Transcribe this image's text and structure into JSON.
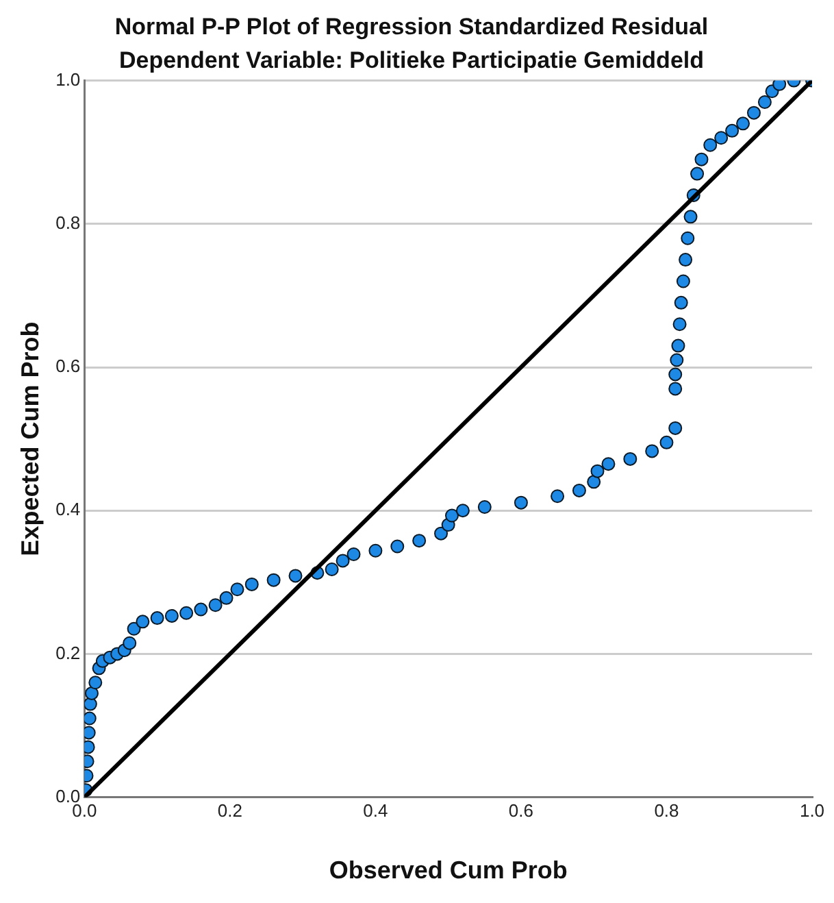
{
  "chart_data": {
    "type": "scatter",
    "title": "Normal P-P Plot of Regression Standardized Residual",
    "subtitle": "Dependent Variable: Politieke Participatie Gemiddeld",
    "xlabel": "Observed Cum Prob",
    "ylabel": "Expected Cum Prob",
    "xlim": [
      0,
      1
    ],
    "ylim": [
      0,
      1
    ],
    "xticks": [
      {
        "value": 0,
        "label": "0.0"
      },
      0.2,
      0.4,
      0.6,
      0.8,
      {
        "value": 1,
        "label": "1.0"
      }
    ],
    "yticks": [
      {
        "value": 0,
        "label": "0.0"
      },
      0.2,
      0.4,
      0.6,
      0.8,
      {
        "value": 1,
        "label": "1.0"
      }
    ],
    "grid": "y",
    "legend": false,
    "marker": "circle",
    "series": [
      {
        "type": "scatter",
        "color": "#1e88e5",
        "x": [
          0.002,
          0.003,
          0.004,
          0.005,
          0.006,
          0.007,
          0.008,
          0.01,
          0.015,
          0.02,
          0.025,
          0.035,
          0.045,
          0.055,
          0.062,
          0.068,
          0.08,
          0.1,
          0.12,
          0.14,
          0.16,
          0.18,
          0.195,
          0.21,
          0.23,
          0.26,
          0.29,
          0.32,
          0.34,
          0.355,
          0.37,
          0.4,
          0.43,
          0.46,
          0.49,
          0.5,
          0.505,
          0.52,
          0.55,
          0.6,
          0.65,
          0.68,
          0.7,
          0.705,
          0.72,
          0.75,
          0.78,
          0.8,
          0.812,
          0.812,
          0.812,
          0.814,
          0.816,
          0.818,
          0.82,
          0.823,
          0.826,
          0.829,
          0.833,
          0.837,
          0.842,
          0.848,
          0.86,
          0.875,
          0.89,
          0.905,
          0.92,
          0.935,
          0.945,
          0.955,
          0.975,
          1.0
        ],
        "values": [
          0.01,
          0.03,
          0.05,
          0.07,
          0.09,
          0.11,
          0.13,
          0.145,
          0.16,
          0.18,
          0.19,
          0.195,
          0.2,
          0.205,
          0.215,
          0.235,
          0.245,
          0.25,
          0.253,
          0.257,
          0.262,
          0.268,
          0.278,
          0.29,
          0.297,
          0.303,
          0.309,
          0.313,
          0.318,
          0.33,
          0.339,
          0.344,
          0.35,
          0.358,
          0.368,
          0.38,
          0.393,
          0.4,
          0.405,
          0.411,
          0.42,
          0.428,
          0.44,
          0.455,
          0.465,
          0.472,
          0.483,
          0.495,
          0.515,
          0.57,
          0.59,
          0.61,
          0.63,
          0.66,
          0.69,
          0.72,
          0.75,
          0.78,
          0.81,
          0.84,
          0.87,
          0.89,
          0.91,
          0.92,
          0.93,
          0.94,
          0.955,
          0.97,
          0.985,
          0.995,
          1.0,
          1.0
        ]
      },
      {
        "type": "line",
        "color": "#000000",
        "marker": "none",
        "x": [
          0,
          1
        ],
        "values": [
          0,
          1
        ]
      }
    ]
  }
}
